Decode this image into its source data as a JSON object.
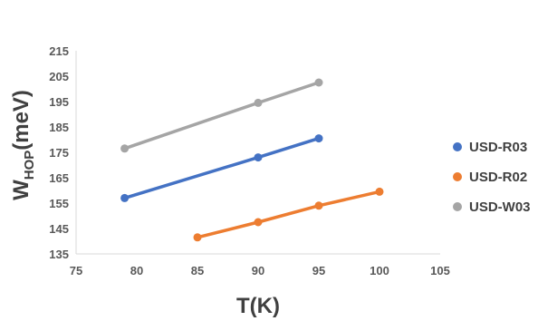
{
  "chart_data": {
    "type": "line",
    "title": "",
    "xlabel": "T(K)",
    "ylabel": {
      "main": "W",
      "sub": "HOP",
      "unit": "(meV)"
    },
    "xlim": [
      75,
      105
    ],
    "ylim": [
      135,
      215
    ],
    "xticks": [
      75,
      80,
      85,
      90,
      95,
      100,
      105
    ],
    "yticks": [
      135,
      145,
      155,
      165,
      175,
      185,
      195,
      205,
      215
    ],
    "grid": false,
    "legend_position": "right",
    "series": [
      {
        "name": "USD-R03",
        "color": "#4472C4",
        "x": [
          79,
          90,
          95
        ],
        "y": [
          157,
          173,
          180.5
        ]
      },
      {
        "name": "USD-R02",
        "color": "#ED7D31",
        "x": [
          85,
          90,
          95,
          100
        ],
        "y": [
          141.5,
          147.5,
          154,
          159.5
        ]
      },
      {
        "name": "USD-W03",
        "color": "#A5A5A5",
        "x": [
          79,
          90,
          95
        ],
        "y": [
          176.5,
          194.5,
          202.5
        ]
      }
    ]
  }
}
